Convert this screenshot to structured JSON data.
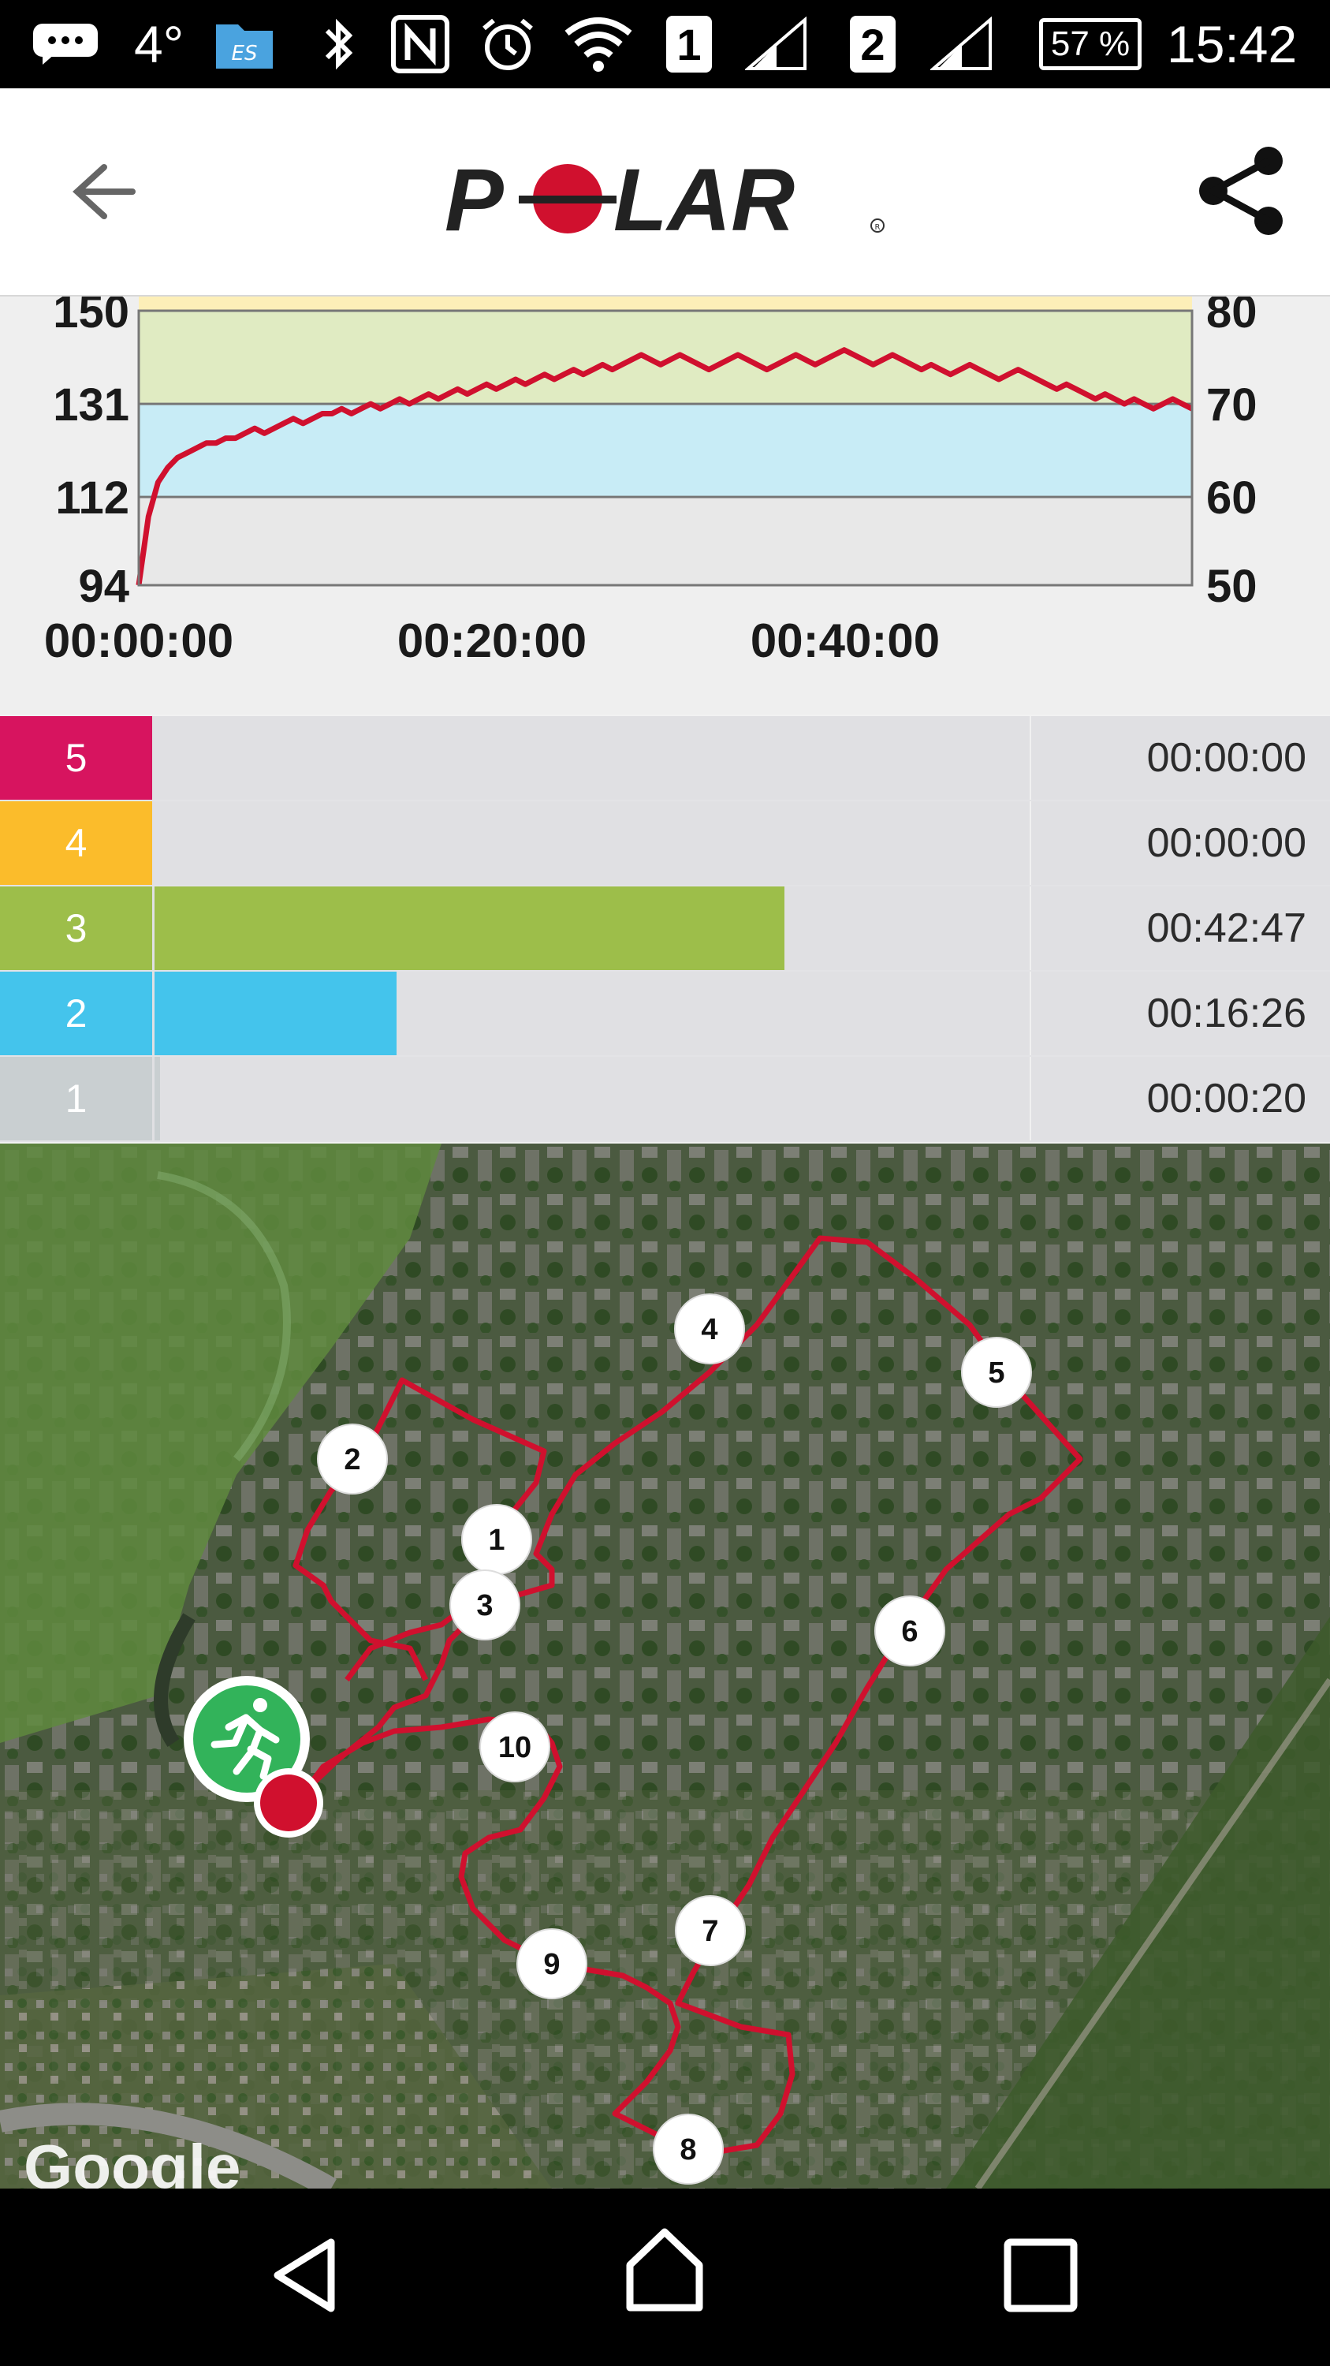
{
  "status_bar": {
    "temperature": "4°",
    "sim1": "1",
    "sim2": "2",
    "battery": "57 %",
    "time": "15:42",
    "icons": [
      "message-icon",
      "es-file-icon",
      "bluetooth-icon",
      "nfc-icon",
      "alarm-icon",
      "wifi-icon",
      "signal-icon",
      "signal-icon"
    ]
  },
  "app_bar": {
    "brand": "POLAR",
    "back_icon": "back-arrow-icon",
    "share_icon": "share-icon"
  },
  "hr_chart": {
    "left_ticks": [
      "150",
      "131",
      "112",
      "94"
    ],
    "right_ticks": [
      "80",
      "70",
      "60",
      "50"
    ],
    "x_ticks": [
      "00:00:00",
      "00:20:00",
      "00:40:00"
    ]
  },
  "chart_data": {
    "type": "line",
    "series": [
      {
        "values": [
          94,
          108,
          115,
          118,
          120,
          121,
          122,
          123,
          123,
          124,
          124,
          125,
          126,
          125,
          126,
          127,
          128,
          127,
          128,
          129,
          129,
          130,
          129,
          130,
          131,
          130,
          131,
          132,
          131,
          132,
          133,
          132,
          133,
          134,
          133,
          134,
          135,
          134,
          135,
          136,
          135,
          136,
          137,
          136,
          137,
          138,
          137,
          138,
          139,
          138,
          139,
          140,
          141,
          140,
          139,
          140,
          141,
          140,
          139,
          138,
          139,
          140,
          141,
          140,
          139,
          138,
          139,
          140,
          141,
          140,
          139,
          140,
          141,
          142,
          141,
          140,
          139,
          140,
          141,
          140,
          139,
          138,
          139,
          138,
          137,
          138,
          139,
          138,
          137,
          136,
          137,
          138,
          137,
          136,
          135,
          134,
          135,
          134,
          133,
          132,
          133,
          132,
          131,
          132,
          131,
          130,
          131,
          132,
          131,
          130
        ]
      }
    ],
    "x_range": [
      "00:00:00",
      "00:59:00"
    ],
    "ylim_left": [
      94,
      150
    ],
    "ylim_right": [
      50,
      80
    ],
    "hr_zone_bands": [
      {
        "from": 131,
        "to": 150,
        "color": "#e0ebc2"
      },
      {
        "from": 112,
        "to": 131,
        "color": "#c8ecf6"
      },
      {
        "from": 94,
        "to": 112,
        "color": "#e8e8e8"
      }
    ],
    "line_color": "#d0102e"
  },
  "zones": [
    {
      "label": "5",
      "color": "#d7145f",
      "fraction": 0.0,
      "time": "00:00:00"
    },
    {
      "label": "4",
      "color": "#fbbc2b",
      "fraction": 0.0,
      "time": "00:00:00"
    },
    {
      "label": "3",
      "color": "#9dbe4a",
      "fraction": 0.72,
      "time": "00:42:47"
    },
    {
      "label": "2",
      "color": "#44c4ec",
      "fraction": 0.277,
      "time": "00:16:26"
    },
    {
      "label": "1",
      "color": "#c9cfd1",
      "fraction": 0.006,
      "time": "00:00:20"
    }
  ],
  "map": {
    "attribution": "Google",
    "laps": [
      "1",
      "2",
      "3",
      "4",
      "5",
      "6",
      "7",
      "8",
      "9",
      "10"
    ],
    "route_color": "#d0102e",
    "start_icon": "running-man-icon"
  },
  "nav_bar": {
    "back_icon": "nav-back-icon",
    "home_icon": "nav-home-icon",
    "recents_icon": "nav-recents-icon"
  }
}
